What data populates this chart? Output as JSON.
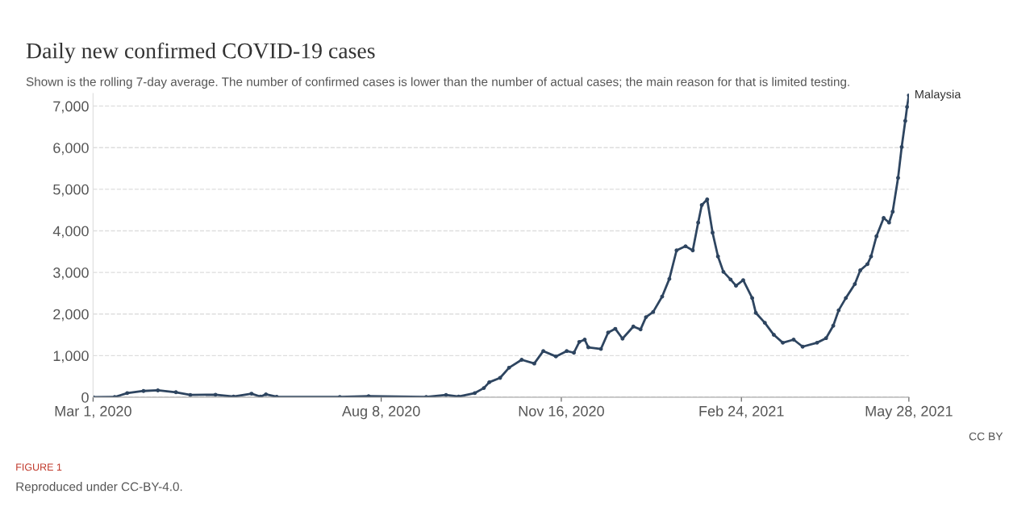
{
  "chart_data": {
    "type": "line",
    "title": "Daily new confirmed COVID-19 cases",
    "subtitle": "Shown is the rolling 7-day average. The number of confirmed cases is lower than the number of actual cases; the main reason for that is limited testing.",
    "x": [
      "2020-03-01",
      "2020-03-13",
      "2020-03-20",
      "2020-03-29",
      "2020-04-06",
      "2020-04-16",
      "2020-04-24",
      "2020-05-08",
      "2020-05-18",
      "2020-05-28",
      "2020-06-02",
      "2020-06-05",
      "2020-06-11",
      "2020-07-16",
      "2020-08-01",
      "2020-09-02",
      "2020-09-13",
      "2020-09-20",
      "2020-09-29",
      "2020-10-04",
      "2020-10-07",
      "2020-10-13",
      "2020-10-18",
      "2020-10-25",
      "2020-11-01",
      "2020-11-06",
      "2020-11-13",
      "2020-11-19",
      "2020-11-23",
      "2020-11-26",
      "2020-11-29",
      "2020-12-01",
      "2020-12-08",
      "2020-12-12",
      "2020-12-16",
      "2020-12-20",
      "2020-12-26",
      "2020-12-30",
      "2021-01-02",
      "2021-01-06",
      "2021-01-11",
      "2021-01-15",
      "2021-01-19",
      "2021-01-24",
      "2021-01-28",
      "2021-01-31",
      "2021-02-02",
      "2021-02-05",
      "2021-02-08",
      "2021-02-11",
      "2021-02-14",
      "2021-02-18",
      "2021-02-21",
      "2021-02-25",
      "2021-03-02",
      "2021-03-04",
      "2021-03-09",
      "2021-03-14",
      "2021-03-19",
      "2021-03-25",
      "2021-03-30",
      "2021-04-07",
      "2021-04-12",
      "2021-04-16",
      "2021-04-19",
      "2021-04-23",
      "2021-04-28",
      "2021-05-01",
      "2021-05-05",
      "2021-05-07",
      "2021-05-10",
      "2021-05-14",
      "2021-05-17",
      "2021-05-19",
      "2021-05-22",
      "2021-05-24",
      "2021-05-26",
      "2021-05-27",
      "2021-05-28"
    ],
    "series": [
      {
        "name": "Malaysia",
        "color": "#2e4560",
        "values": [
          0,
          5,
          100,
          150,
          165,
          120,
          55,
          60,
          15,
          85,
          15,
          70,
          10,
          5,
          25,
          5,
          55,
          15,
          100,
          220,
          360,
          465,
          710,
          900,
          810,
          1110,
          980,
          1110,
          1070,
          1330,
          1385,
          1200,
          1160,
          1555,
          1645,
          1410,
          1700,
          1630,
          1925,
          2050,
          2420,
          2845,
          3530,
          3630,
          3530,
          4200,
          4620,
          4755,
          3955,
          3385,
          3015,
          2830,
          2680,
          2815,
          2385,
          2030,
          1790,
          1500,
          1310,
          1385,
          1215,
          1310,
          1420,
          1720,
          2090,
          2385,
          2720,
          3050,
          3200,
          3385,
          3870,
          4310,
          4200,
          4460,
          5275,
          6015,
          6645,
          6980,
          7260
        ]
      }
    ],
    "xlim": [
      "2020-03-01",
      "2021-05-28"
    ],
    "xticks": [
      {
        "value": "2020-03-01",
        "label": "Mar 1, 2020"
      },
      {
        "value": "2020-08-08",
        "label": "Aug 8, 2020"
      },
      {
        "value": "2020-11-16",
        "label": "Nov 16, 2020"
      },
      {
        "value": "2021-02-24",
        "label": "Feb 24, 2021"
      },
      {
        "value": "2021-05-28",
        "label": "May 28, 2021"
      }
    ],
    "ylim": [
      0,
      7300
    ],
    "yticks": [
      {
        "value": 0,
        "label": "0"
      },
      {
        "value": 1000,
        "label": "1,000"
      },
      {
        "value": 2000,
        "label": "2,000"
      },
      {
        "value": 3000,
        "label": "3,000"
      },
      {
        "value": 4000,
        "label": "4,000"
      },
      {
        "value": 5000,
        "label": "5,000"
      },
      {
        "value": 6000,
        "label": "6,000"
      },
      {
        "value": 7000,
        "label": "7,000"
      }
    ],
    "grid": "y",
    "marker": "circle",
    "line_style": "solid",
    "legend": false,
    "annotations": [
      "CC BY",
      "FIGURE 1",
      "Reproduced under CC-BY-4.0."
    ]
  }
}
